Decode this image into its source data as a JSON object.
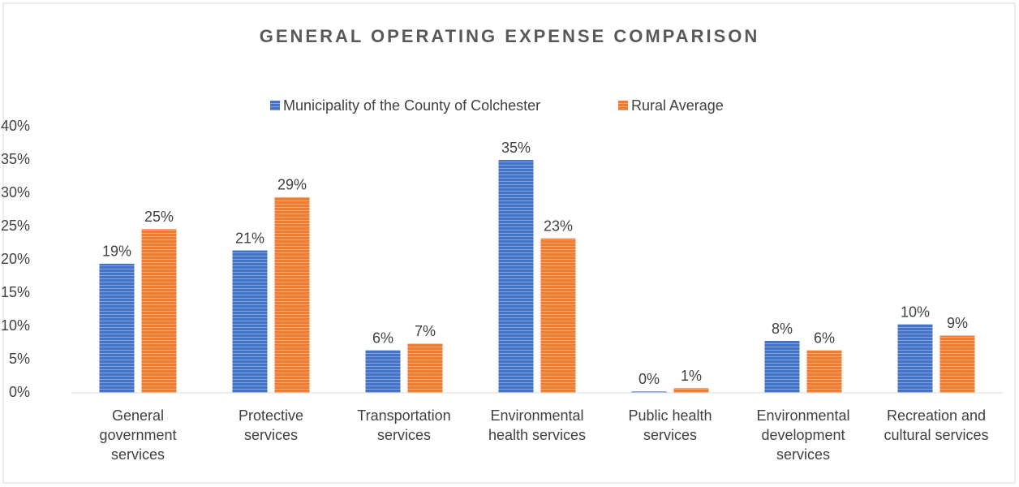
{
  "chart_data": {
    "type": "bar",
    "title": "GENERAL OPERATING EXPENSE COMPARISON",
    "categories": [
      "General government services",
      "Protective services",
      "Transportation services",
      "Environmental health services",
      "Public health services",
      "Environmental development services",
      "Recreation and cultural services"
    ],
    "series": [
      {
        "name": "Municipality of the County of Colchester",
        "color": "#4472c4",
        "values": [
          19.4,
          21.4,
          6.4,
          35.0,
          0.2,
          7.8,
          10.3
        ],
        "value_labels": [
          "19%",
          "21%",
          "6%",
          "35%",
          "0%",
          "8%",
          "10%"
        ]
      },
      {
        "name": "Rural Average",
        "color": "#ed7d31",
        "values": [
          24.6,
          29.4,
          7.4,
          23.2,
          0.7,
          6.4,
          8.6
        ],
        "value_labels": [
          "25%",
          "29%",
          "7%",
          "23%",
          "1%",
          "6%",
          "9%"
        ]
      }
    ],
    "ylim": [
      0,
      40
    ],
    "yticks": [
      {
        "value": 0,
        "label": "0%"
      },
      {
        "value": 5,
        "label": "5%"
      },
      {
        "value": 10,
        "label": "10%"
      },
      {
        "value": 15,
        "label": "15%"
      },
      {
        "value": 20,
        "label": "20%"
      },
      {
        "value": 25,
        "label": "25%"
      },
      {
        "value": 30,
        "label": "30%"
      },
      {
        "value": 35,
        "label": "35%"
      },
      {
        "value": 40,
        "label": "40%"
      }
    ],
    "grid": false,
    "legend": "top"
  }
}
